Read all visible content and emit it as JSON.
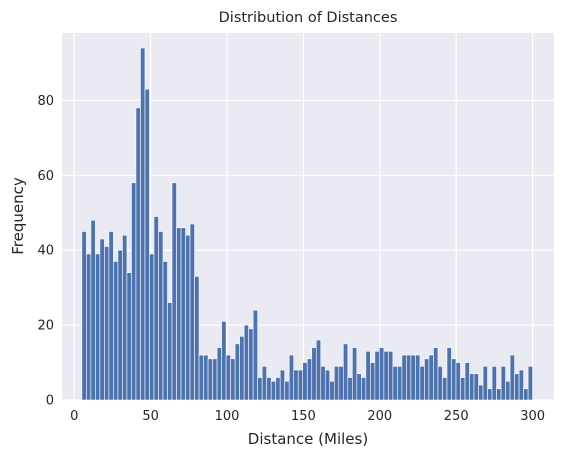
{
  "chart_data": {
    "type": "bar",
    "title": "Distribution of Distances",
    "xlabel": "Distance (Miles)",
    "ylabel": "Frequency",
    "xlim": [
      -8,
      314
    ],
    "ylim": [
      0,
      98
    ],
    "xticks": [
      0,
      50,
      100,
      150,
      200,
      250,
      300
    ],
    "yticks": [
      0,
      20,
      40,
      60,
      80
    ],
    "grid": true,
    "bin_start": 5,
    "bin_width": 2.95,
    "values": [
      45,
      39,
      48,
      39,
      43,
      41,
      45,
      37,
      40,
      44,
      34,
      58,
      78,
      94,
      83,
      39,
      49,
      45,
      37,
      26,
      58,
      46,
      46,
      44,
      47,
      33,
      12,
      12,
      11,
      11,
      14,
      21,
      12,
      11,
      15,
      17,
      20,
      19,
      24,
      6,
      9,
      6,
      5,
      6,
      8,
      5,
      12,
      8,
      8,
      10,
      11,
      14,
      16,
      9,
      8,
      5,
      9,
      9,
      15,
      6,
      14,
      7,
      6,
      13,
      10,
      13,
      14,
      13,
      13,
      9,
      9,
      12,
      12,
      12,
      12,
      9,
      11,
      12,
      14,
      9,
      6,
      14,
      11,
      10,
      6,
      10,
      7,
      7,
      4,
      9,
      3,
      9,
      3,
      9,
      5,
      12,
      7,
      8,
      3,
      9
    ]
  }
}
